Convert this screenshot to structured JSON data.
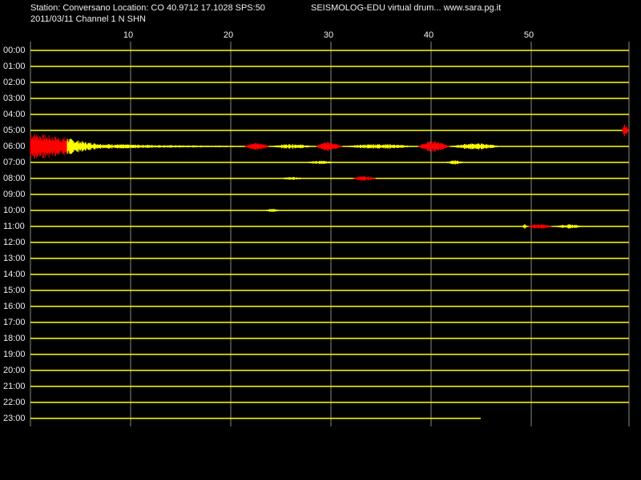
{
  "header": {
    "station": "Station: Conversano Location: CO 40.9712 17.1028 SPS:50",
    "program": "SEISMOLOG-EDU virtual drum... www.sara.pg.it",
    "date": "2011/03/11  Channel 1 N SHN"
  },
  "minute_labels": [
    "10",
    "20",
    "30",
    "40",
    "50"
  ],
  "hour_labels": [
    "00:00",
    "01:00",
    "02:00",
    "03:00",
    "04:00",
    "05:00",
    "06:00",
    "07:00",
    "08:00",
    "09:00",
    "10:00",
    "11:00",
    "12:00",
    "13:00",
    "14:00",
    "15:00",
    "16:00",
    "17:00",
    "18:00",
    "19:00",
    "20:00",
    "21:00",
    "22:00",
    "23:00"
  ]
}
